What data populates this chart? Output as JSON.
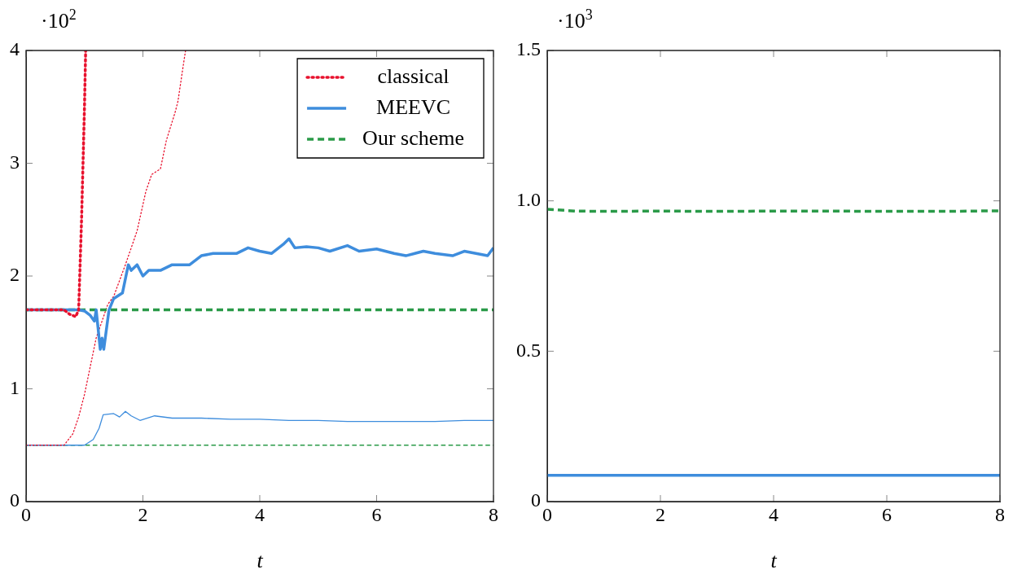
{
  "chart_data": [
    {
      "type": "line",
      "xlabel": "t",
      "annotations": [
        "·10$^{2}$"
      ],
      "xlim": [
        0,
        8
      ],
      "xticks": [
        0,
        2,
        4,
        6,
        8
      ],
      "ylim": [
        0,
        4
      ],
      "yticks": [
        0,
        1,
        2,
        3,
        4
      ],
      "legend": "top right",
      "grid": false,
      "series": [
        {
          "name": "classical",
          "color": "#e8112d",
          "line_style": "dotted",
          "x": [
            0,
            0.65,
            0.75,
            0.85,
            0.9,
            0.95,
            1.0,
            1.02
          ],
          "values": [
            1.7,
            1.7,
            1.66,
            1.64,
            1.7,
            2.5,
            3.5,
            4
          ]
        },
        {
          "name": "MEEVC",
          "color": "#3e8ddd",
          "line_style": "solid",
          "x": [
            0,
            0.9,
            1.0,
            1.1,
            1.17,
            1.2,
            1.27,
            1.3,
            1.33,
            1.42,
            1.5,
            1.65,
            1.75,
            1.8,
            1.9,
            2.0,
            2.1,
            2.3,
            2.5,
            2.7,
            2.8,
            3.0,
            3.2,
            3.4,
            3.6,
            3.8,
            4.0,
            4.2,
            4.4,
            4.5,
            4.6,
            4.8,
            5.0,
            5.2,
            5.5,
            5.7,
            6.0,
            6.3,
            6.5,
            6.8,
            7.0,
            7.3,
            7.5,
            7.7,
            7.9,
            8.0
          ],
          "values": [
            1.7,
            1.7,
            1.69,
            1.65,
            1.6,
            1.7,
            1.35,
            1.45,
            1.35,
            1.7,
            1.8,
            1.85,
            2.1,
            2.05,
            2.1,
            2.0,
            2.05,
            2.05,
            2.1,
            2.1,
            2.1,
            2.18,
            2.2,
            2.2,
            2.2,
            2.25,
            2.22,
            2.2,
            2.28,
            2.33,
            2.25,
            2.26,
            2.25,
            2.22,
            2.27,
            2.22,
            2.24,
            2.2,
            2.18,
            2.22,
            2.2,
            2.18,
            2.22,
            2.2,
            2.18,
            2.25
          ]
        },
        {
          "name": "Our scheme",
          "color": "#2a9a48",
          "line_style": "dashed",
          "x": [
            0,
            8
          ],
          "values": [
            1.7,
            1.7
          ]
        },
        {
          "color": "#e8112d",
          "line_style": "dotted",
          "x": [
            0,
            0.65,
            0.8,
            0.9,
            1.0,
            1.1,
            1.2,
            1.3,
            1.4,
            1.5,
            1.7,
            1.9,
            2.05,
            2.15,
            2.3,
            2.4,
            2.55,
            2.6,
            2.7,
            2.73
          ],
          "values": [
            0.5,
            0.5,
            0.6,
            0.75,
            0.95,
            1.2,
            1.45,
            1.6,
            1.75,
            1.82,
            2.1,
            2.4,
            2.75,
            2.9,
            2.95,
            3.2,
            3.45,
            3.55,
            3.9,
            4
          ]
        },
        {
          "color": "#3e8ddd",
          "line_style": "solid",
          "x": [
            0,
            1.0,
            1.15,
            1.25,
            1.32,
            1.5,
            1.6,
            1.7,
            1.8,
            1.95,
            2.2,
            2.5,
            3.0,
            3.5,
            4.0,
            4.5,
            5.0,
            5.5,
            6.0,
            6.5,
            7.0,
            7.5,
            8.0
          ],
          "values": [
            0.5,
            0.5,
            0.55,
            0.65,
            0.77,
            0.78,
            0.75,
            0.8,
            0.76,
            0.72,
            0.76,
            0.74,
            0.74,
            0.73,
            0.73,
            0.72,
            0.72,
            0.71,
            0.71,
            0.71,
            0.71,
            0.72,
            0.72
          ]
        },
        {
          "color": "#2a9a48",
          "line_style": "dashed",
          "x": [
            0,
            8
          ],
          "values": [
            0.5,
            0.5
          ]
        }
      ]
    },
    {
      "type": "line",
      "xlabel": "t",
      "annotations": [
        "·10$^{3}$"
      ],
      "xlim": [
        0,
        8
      ],
      "xticks": [
        0,
        2,
        4,
        6,
        8
      ],
      "ylim": [
        0,
        1.5
      ],
      "yticks": [
        {
          "value": 0,
          "label": "0"
        },
        {
          "value": 0.5,
          "label": "0.5"
        },
        {
          "value": 1,
          "label": "1.0"
        },
        {
          "value": 1.5,
          "label": "1.5"
        }
      ],
      "grid": false,
      "series": [
        {
          "color": "#2a9a48",
          "line_style": "dashed",
          "x": [
            0,
            0.5,
            1,
            2,
            3,
            4,
            5,
            6,
            7,
            8
          ],
          "values": [
            0.972,
            0.966,
            0.965,
            0.966,
            0.965,
            0.966,
            0.966,
            0.965,
            0.965,
            0.967
          ]
        },
        {
          "color": "#3e8ddd",
          "line_style": "solid",
          "x": [
            0,
            8
          ],
          "values": [
            0.087,
            0.087
          ]
        }
      ]
    }
  ]
}
